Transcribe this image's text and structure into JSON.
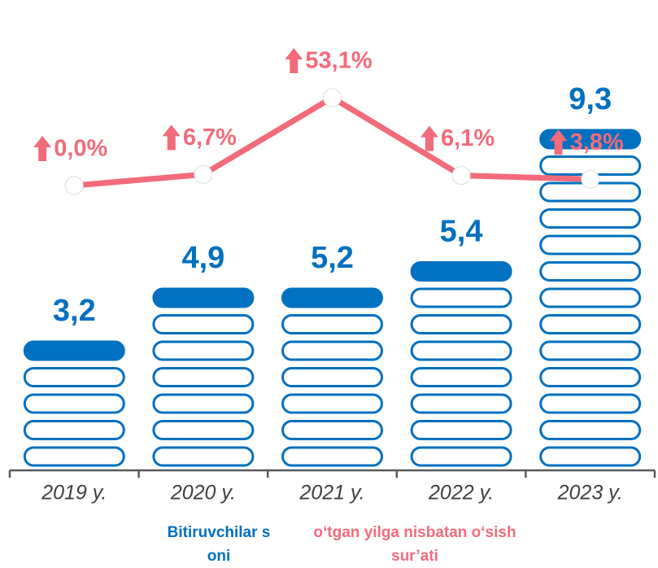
{
  "chart_data": {
    "type": "bar_line",
    "categories": [
      "2019 y.",
      "2020 y.",
      "2021 y.",
      "2022 y.",
      "2023 y."
    ],
    "series": [
      {
        "name": "Bitiruvchilar soni",
        "type": "bar",
        "color": "#0070c0",
        "values": [
          3.2,
          4.9,
          5.2,
          5.4,
          9.3
        ],
        "value_labels": [
          "3,2",
          "4,9",
          "5,2",
          "5,4",
          "9,3"
        ]
      },
      {
        "name": "o‘tgan yilga nisbatan o‘sish sur’ati",
        "type": "line",
        "color": "#f26b7a",
        "values": [
          0.0,
          6.7,
          53.1,
          6.1,
          3.8
        ],
        "value_labels": [
          "0,0%",
          "6,7%",
          "53,1%",
          "6,1%",
          "3,8%"
        ]
      }
    ]
  }
}
